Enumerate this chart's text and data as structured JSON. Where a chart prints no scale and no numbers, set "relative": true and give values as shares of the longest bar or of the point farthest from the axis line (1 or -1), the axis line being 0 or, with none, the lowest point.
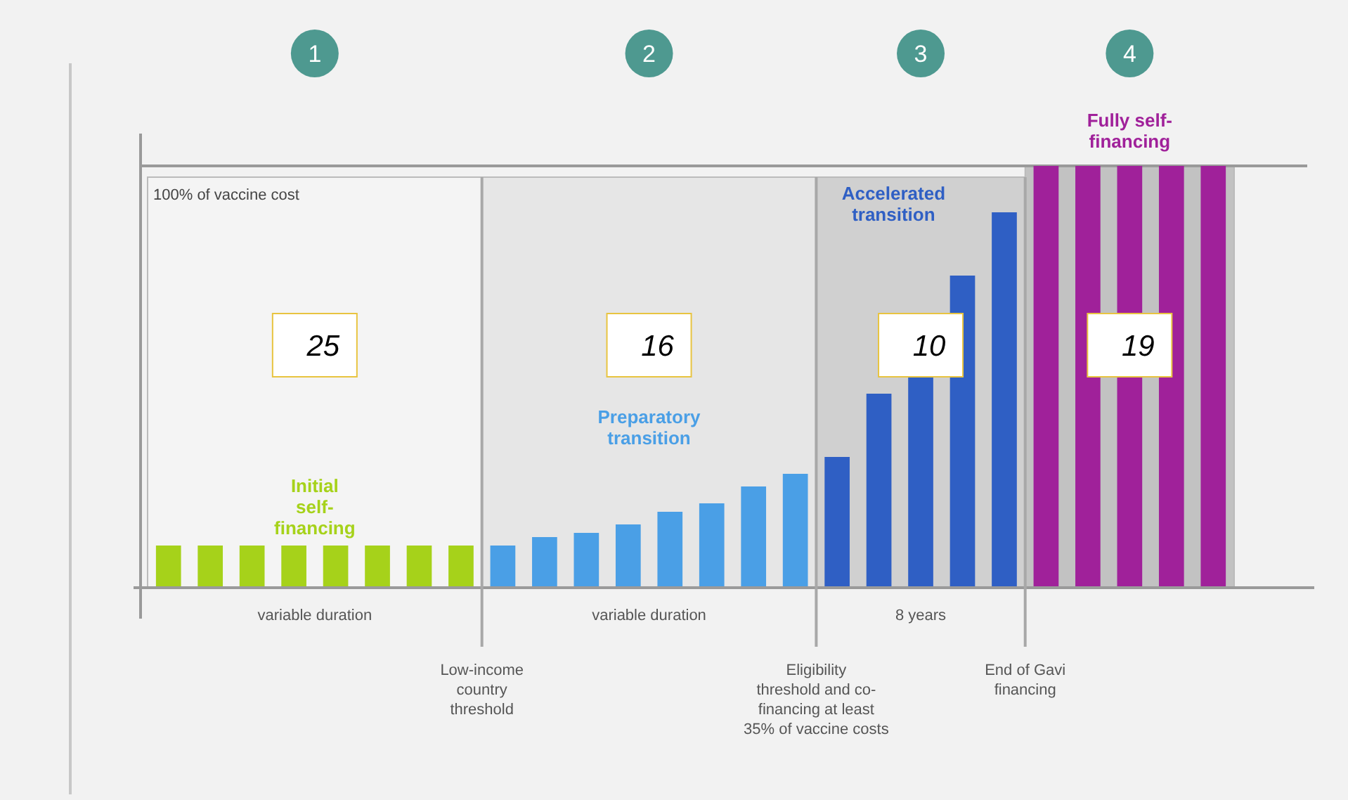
{
  "chart_data": {
    "type": "bar",
    "relative": true,
    "categories": [
      null,
      null,
      null,
      null,
      null,
      null,
      null,
      null,
      null,
      null,
      null,
      null,
      null,
      null,
      null,
      null,
      null,
      null,
      null,
      null,
      null,
      null,
      null,
      null,
      null,
      null
    ],
    "values": [
      0.1,
      0.1,
      0.1,
      0.1,
      0.1,
      0.1,
      0.1,
      0.1,
      0.1,
      0.12,
      0.13,
      0.15,
      0.18,
      0.2,
      0.24,
      0.27,
      0.31,
      0.46,
      0.5,
      0.74,
      0.89,
      1,
      1,
      1,
      1,
      1
    ],
    "colors": [
      "#a6d21a",
      "#a6d21a",
      "#a6d21a",
      "#a6d21a",
      "#a6d21a",
      "#a6d21a",
      "#a6d21a",
      "#a6d21a",
      "#4a9fe6",
      "#4a9fe6",
      "#4a9fe6",
      "#4a9fe6",
      "#4a9fe6",
      "#4a9fe6",
      "#4a9fe6",
      "#4a9fe6",
      "#2f5fc4",
      "#2f5fc4",
      "#2f5fc4",
      "#2f5fc4",
      "#2f5fc4",
      "#a0219a",
      "#a0219a",
      "#a0219a",
      "#a0219a",
      "#a0219a"
    ],
    "annotations": [
      "1",
      "2",
      "3",
      "4",
      "25",
      "16",
      "10",
      "19",
      "Initial self-financing",
      "Preparatory transition",
      "Accelerated transition",
      "Fully self-financing",
      "100% of vaccine cost",
      "variable duration",
      "variable duration",
      "8 years",
      "Low-income country threshold",
      "Eligibility threshold and co-financing at least 35% of vaccine costs",
      "End of Gavi financing"
    ]
  }
}
